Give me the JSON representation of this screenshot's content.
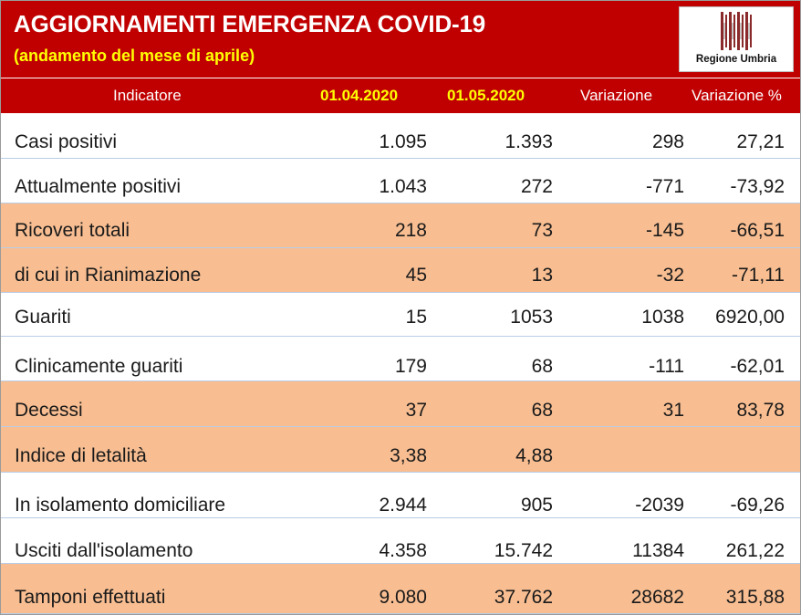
{
  "header": {
    "title": "AGGIORNAMENTI EMERGENZA COVID-19",
    "subtitle": "(andamento del mese di aprile)",
    "logo_text": "Regione Umbria"
  },
  "colors": {
    "banner": "#c00000",
    "highlight_text": "#ffff00",
    "peach_row": "#f8be92",
    "row_border": "#b9cde5"
  },
  "table": {
    "columns": [
      "Indicatore",
      "01.04.2020",
      "01.05.2020",
      "Variazione",
      "Variazione %"
    ],
    "rows": [
      {
        "label": "Casi positivi",
        "v1": "1.095",
        "v2": "1.393",
        "var": "298",
        "varp": "27,21",
        "shade": "white"
      },
      {
        "label": "Attualmente positivi",
        "v1": "1.043",
        "v2": "272",
        "var": "-771",
        "varp": "-73,92",
        "shade": "white"
      },
      {
        "label": "Ricoveri totali",
        "v1": "218",
        "v2": "73",
        "var": "-145",
        "varp": "-66,51",
        "shade": "peach"
      },
      {
        "label": "di cui in Rianimazione",
        "v1": "45",
        "v2": "13",
        "var": "-32",
        "varp": "-71,11",
        "shade": "peach"
      },
      {
        "label": "Guariti",
        "v1": "15",
        "v2": "1053",
        "var": "1038",
        "varp": "6920,00",
        "shade": "white"
      },
      {
        "label": "Clinicamente guariti",
        "v1": "179",
        "v2": "68",
        "var": "-111",
        "varp": "-62,01",
        "shade": "white"
      },
      {
        "label": "Decessi",
        "v1": "37",
        "v2": "68",
        "var": "31",
        "varp": "83,78",
        "shade": "peach"
      },
      {
        "label": "Indice di letalità",
        "v1": "3,38",
        "v2": "4,88",
        "var": "",
        "varp": "",
        "shade": "peach"
      },
      {
        "label": "In isolamento domiciliare",
        "v1": "2.944",
        "v2": "905",
        "var": "-2039",
        "varp": "-69,26",
        "shade": "white"
      },
      {
        "label": "Usciti dall'isolamento",
        "v1": "4.358",
        "v2": "15.742",
        "var": "11384",
        "varp": "261,22",
        "shade": "white"
      },
      {
        "label": "Tamponi effettuati",
        "v1": "9.080",
        "v2": "37.762",
        "var": "28682",
        "varp": "315,88",
        "shade": "peach"
      }
    ]
  }
}
